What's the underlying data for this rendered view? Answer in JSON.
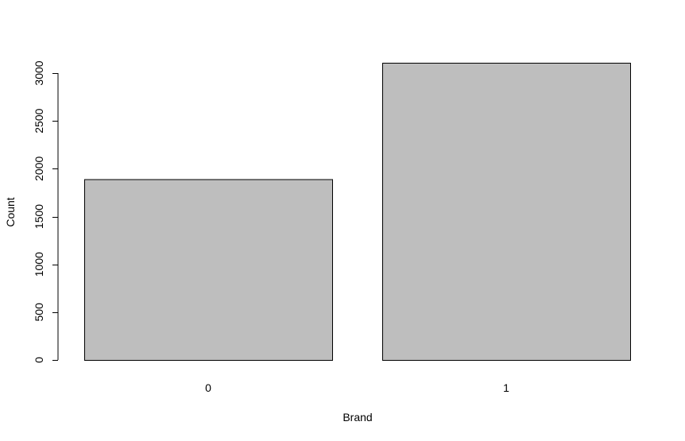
{
  "chart_data": {
    "type": "bar",
    "categories": [
      "0",
      "1"
    ],
    "values": [
      1890,
      3110
    ],
    "title": "",
    "xlabel": "Brand",
    "ylabel": "Count",
    "ylim": [
      0,
      3100
    ],
    "yticks": [
      "0",
      "500",
      "1000",
      "1500",
      "2000",
      "2500",
      "3000"
    ],
    "grid": false,
    "legend": "none",
    "bar_color": "#bebebe",
    "bar_border_color": "#000000"
  }
}
